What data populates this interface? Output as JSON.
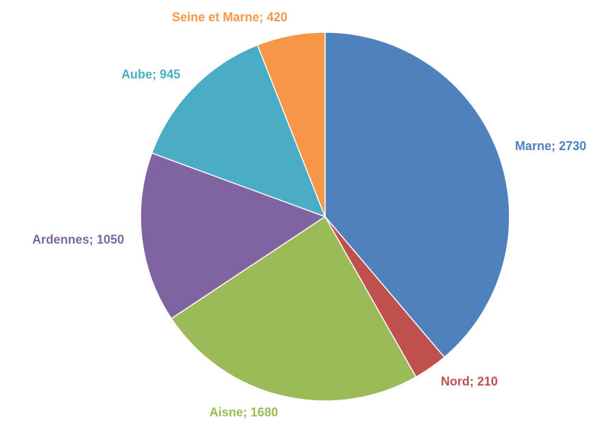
{
  "chart_data": {
    "type": "pie",
    "categories": [
      "Marne",
      "Nord",
      "Aisne",
      "Ardennes",
      "Aube",
      "Seine et Marne"
    ],
    "values": [
      2730,
      210,
      1680,
      1050,
      945,
      420
    ],
    "value_labels": [
      "Marne; 2730",
      "Nord; 210",
      "Aisne; 1680",
      "Ardennes; 1050",
      "Aube; 945",
      "Seine et Marne; 420"
    ],
    "colors": [
      "#4f81bd",
      "#c0504d",
      "#9bbb59",
      "#8064a2",
      "#4bacc6",
      "#f79646"
    ]
  }
}
